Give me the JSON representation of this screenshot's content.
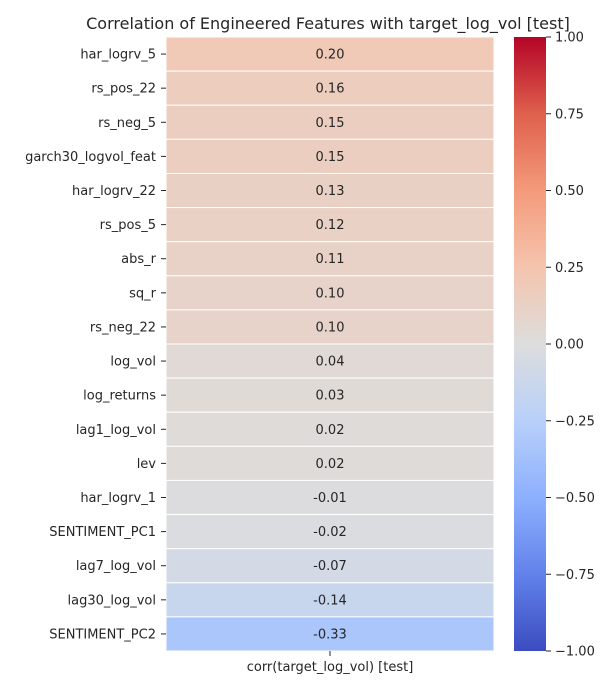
{
  "chart_data": {
    "type": "heatmap",
    "title": "Correlation of Engineered Features with target_log_vol [test]",
    "xlabel": "",
    "ylabel": "",
    "column_label": "corr(target_log_vol) [test]",
    "rows": [
      {
        "label": "har_logrv_5",
        "value": 0.2,
        "text": "0.20"
      },
      {
        "label": "rs_pos_22",
        "value": 0.16,
        "text": "0.16"
      },
      {
        "label": "rs_neg_5",
        "value": 0.15,
        "text": "0.15"
      },
      {
        "label": "garch30_logvol_feat",
        "value": 0.15,
        "text": "0.15"
      },
      {
        "label": "har_logrv_22",
        "value": 0.13,
        "text": "0.13"
      },
      {
        "label": "rs_pos_5",
        "value": 0.12,
        "text": "0.12"
      },
      {
        "label": "abs_r",
        "value": 0.11,
        "text": "0.11"
      },
      {
        "label": "sq_r",
        "value": 0.1,
        "text": "0.10"
      },
      {
        "label": "rs_neg_22",
        "value": 0.1,
        "text": "0.10"
      },
      {
        "label": "log_vol",
        "value": 0.04,
        "text": "0.04"
      },
      {
        "label": "log_returns",
        "value": 0.03,
        "text": "0.03"
      },
      {
        "label": "lag1_log_vol",
        "value": 0.02,
        "text": "0.02"
      },
      {
        "label": "lev",
        "value": 0.02,
        "text": "0.02"
      },
      {
        "label": "har_logrv_1",
        "value": -0.01,
        "text": "-0.01"
      },
      {
        "label": "SENTIMENT_PC1",
        "value": -0.02,
        "text": "-0.02"
      },
      {
        "label": "lag7_log_vol",
        "value": -0.07,
        "text": "-0.07"
      },
      {
        "label": "lag30_log_vol",
        "value": -0.14,
        "text": "-0.14"
      },
      {
        "label": "SENTIMENT_PC2",
        "value": -0.33,
        "text": "-0.33"
      }
    ],
    "colorbar": {
      "colormap": "coolwarm",
      "range": [
        -1.0,
        1.0
      ],
      "ticks": [
        {
          "value": 1.0,
          "label": "1.00"
        },
        {
          "value": 0.75,
          "label": "0.75"
        },
        {
          "value": 0.5,
          "label": "0.50"
        },
        {
          "value": 0.25,
          "label": "0.25"
        },
        {
          "value": 0.0,
          "label": "0.00"
        },
        {
          "value": -0.25,
          "label": "−0.25"
        },
        {
          "value": -0.5,
          "label": "−0.50"
        },
        {
          "value": -0.75,
          "label": "−0.75"
        },
        {
          "value": -1.0,
          "label": "−1.00"
        }
      ]
    },
    "colors": {
      "min": "#3b4cc0",
      "mid": "#dddddd",
      "max": "#b40426"
    }
  }
}
